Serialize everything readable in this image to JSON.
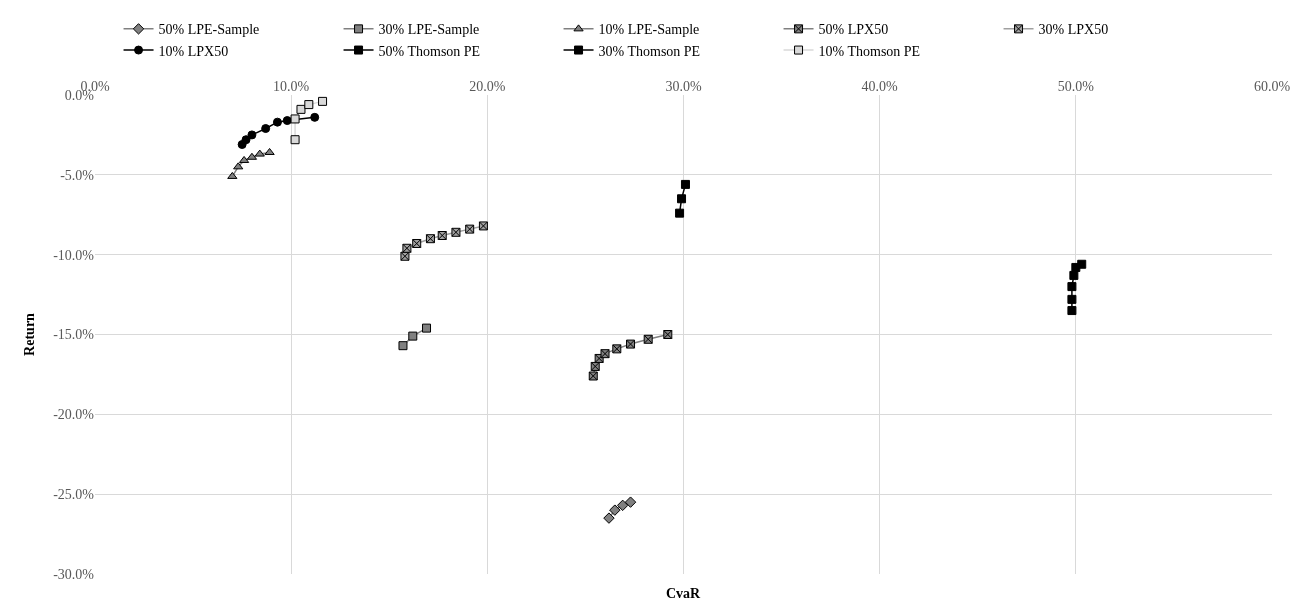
{
  "chart_data": {
    "type": "line",
    "xlabel": "CvaR",
    "ylabel": "Return",
    "xlim": [
      0,
      60
    ],
    "xticks": [
      {
        "value": 0,
        "label": "0.0%"
      },
      {
        "value": 10,
        "label": "10.0%"
      },
      {
        "value": 20,
        "label": "20.0%"
      },
      {
        "value": 30,
        "label": "30.0%"
      },
      {
        "value": 40,
        "label": "40.0%"
      },
      {
        "value": 50,
        "label": "50.0%"
      },
      {
        "value": 60,
        "label": "60.0%"
      }
    ],
    "ylim": [
      -30,
      0
    ],
    "yticks": [
      {
        "value": -30,
        "label": "-30.0%"
      },
      {
        "value": -25,
        "label": "-25.0%"
      },
      {
        "value": -20,
        "label": "-20.0%"
      },
      {
        "value": -15,
        "label": "-15.0%"
      },
      {
        "value": -10,
        "label": "-10.0%"
      },
      {
        "value": -5,
        "label": "-5.0%"
      },
      {
        "value": 0,
        "label": "0.0%"
      }
    ],
    "grid": true,
    "legend": "top",
    "series": [
      {
        "name": "50% LPE-Sample",
        "color": "#808080",
        "marker": "diamond",
        "x": [
          26.2,
          26.5,
          26.9,
          27.3
        ],
        "values": [
          -26.5,
          -26.0,
          -25.7,
          -25.5
        ]
      },
      {
        "name": "30% LPE-Sample",
        "color": "#808080",
        "marker": "square",
        "x": [
          15.7,
          16.2,
          16.9
        ],
        "values": [
          -15.7,
          -15.1,
          -14.6
        ]
      },
      {
        "name": "10% LPE-Sample",
        "color": "#808080",
        "marker": "triangle",
        "x": [
          7.0,
          7.3,
          7.6,
          8.0,
          8.4,
          8.9
        ],
        "values": [
          -5.1,
          -4.5,
          -4.1,
          -3.9,
          -3.7,
          -3.6
        ]
      },
      {
        "name": "50% LPX50",
        "color": "#808080",
        "marker": "cross",
        "x": [
          25.4,
          25.5,
          25.7,
          26.0,
          26.6,
          27.3,
          28.2,
          29.2
        ],
        "values": [
          -17.6,
          -17.0,
          -16.5,
          -16.2,
          -15.9,
          -15.6,
          -15.3,
          -15.0
        ]
      },
      {
        "name": "30% LPX50",
        "color": "#a0a0a0",
        "marker": "cross",
        "x": [
          15.8,
          15.9,
          16.4,
          17.1,
          17.7,
          18.4,
          19.1,
          19.8
        ],
        "values": [
          -10.1,
          -9.6,
          -9.3,
          -9.0,
          -8.8,
          -8.6,
          -8.4,
          -8.2
        ]
      },
      {
        "name": "10% LPX50",
        "color": "#000000",
        "marker": "circle",
        "x": [
          7.5,
          7.7,
          8.0,
          8.7,
          9.3,
          9.8,
          11.2
        ],
        "values": [
          -3.1,
          -2.8,
          -2.5,
          -2.1,
          -1.7,
          -1.6,
          -1.4
        ]
      },
      {
        "name": "50% Thomson PE",
        "color": "#000000",
        "marker": "square",
        "x": [
          49.8,
          49.8,
          49.8,
          49.9,
          50.0,
          50.3
        ],
        "values": [
          -13.5,
          -12.8,
          -12.0,
          -11.3,
          -10.8,
          -10.6
        ]
      },
      {
        "name": "30% Thomson PE",
        "color": "#000000",
        "marker": "square",
        "x": [
          29.8,
          29.9,
          30.1
        ],
        "values": [
          -7.4,
          -6.5,
          -5.6
        ]
      },
      {
        "name": "10% Thomson PE",
        "color": "#d9d9d9",
        "marker": "square",
        "x": [
          10.2,
          10.2,
          10.5,
          10.9,
          11.6
        ],
        "values": [
          -2.8,
          -1.5,
          -0.9,
          -0.6,
          -0.4
        ]
      }
    ]
  }
}
